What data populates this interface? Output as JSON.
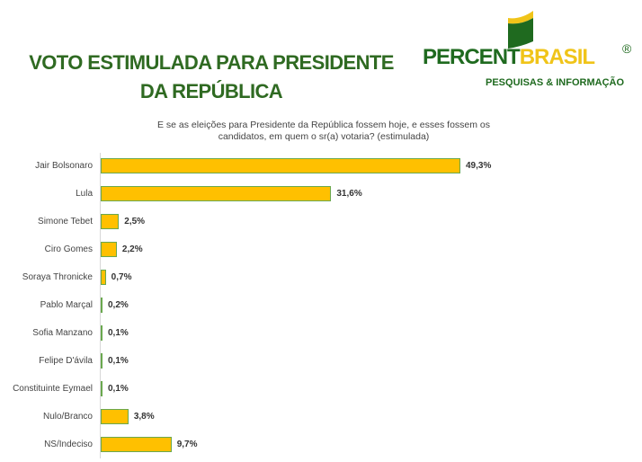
{
  "header": {
    "title_line1": "VOTO ESTIMULADA PARA PRESIDENTE",
    "title_line2": "DA REPÚBLICA"
  },
  "logo": {
    "part1": "PERCENT",
    "part2": "BRASIL",
    "registered": "®",
    "tagline": "PESQUISAS & INFORMAÇÃO"
  },
  "question": "E se as eleições para Presidente da República fossem hoje, e esses fossem os candidatos, em quem o sr(a) votaria?  (estimulada)",
  "colors": {
    "bar": "#ffc000",
    "bar_border": "#6aa84f",
    "title": "#2f6a22"
  },
  "chart_data": {
    "type": "bar",
    "orientation": "horizontal",
    "categories": [
      "Jair Bolsonaro",
      "Lula",
      "Simone Tebet",
      "Ciro Gomes",
      "Soraya Thronicke",
      "Pablo Marçal",
      "Sofia Manzano",
      "Felipe D'ávila",
      "Constituinte Eymael",
      "Nulo/Branco",
      "NS/Indeciso"
    ],
    "values": [
      49.3,
      31.6,
      2.5,
      2.2,
      0.7,
      0.2,
      0.1,
      0.1,
      0.1,
      3.8,
      9.7
    ],
    "labels": [
      "49,3%",
      "31,6%",
      "2,5%",
      "2,2%",
      "0,7%",
      "0,2%",
      "0,1%",
      "0,1%",
      "0,1%",
      "3,8%",
      "9,7%"
    ],
    "title": "VOTO ESTIMULADA PARA PRESIDENTE DA REPÚBLICA",
    "grid": false
  }
}
